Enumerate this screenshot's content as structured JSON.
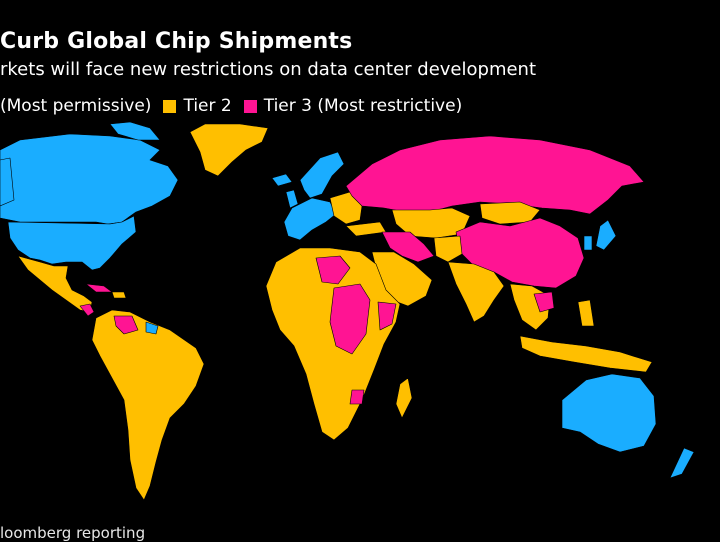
{
  "header": {
    "title": "Curb Global Chip Shipments",
    "subtitle": "rkets will face new restrictions on data center development"
  },
  "legend": {
    "tier1_label": "(Most permissive)",
    "tier2_label": "Tier 2",
    "tier3_label": "Tier 3 (Most restrictive)"
  },
  "colors": {
    "tier1": "#1aadff",
    "tier2": "#ffbf00",
    "tier3": "#ff1493",
    "background": "#000000"
  },
  "source": "loomberg reporting"
}
